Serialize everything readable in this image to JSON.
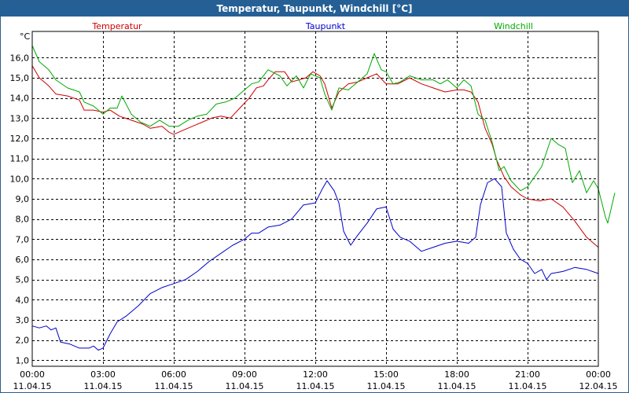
{
  "window": {
    "title": "Temperatur, Taupunkt, Windchill [°C]"
  },
  "colors": {
    "temperatur": "#cc0000",
    "taupunkt": "#0000cc",
    "windchill": "#00aa00",
    "title_bg": "#246095"
  },
  "chart_data": {
    "type": "line",
    "title": "Temperatur, Taupunkt, Windchill [°C]",
    "ylabel": "°C",
    "xlabel": "",
    "ylim": [
      0.7,
      17.3
    ],
    "xlim": [
      0,
      24
    ],
    "grid": true,
    "legend_placement": "top",
    "yticks": [
      1.0,
      2.0,
      3.0,
      4.0,
      5.0,
      6.0,
      7.0,
      8.0,
      9.0,
      10.0,
      11.0,
      12.0,
      13.0,
      14.0,
      15.0,
      16.0
    ],
    "ytick_labels": [
      "1,0",
      "2,0",
      "3,0",
      "4,0",
      "5,0",
      "6,0",
      "7,0",
      "8,0",
      "9,0",
      "10,0",
      "11,0",
      "12,0",
      "13,0",
      "14,0",
      "15,0",
      "16,0"
    ],
    "xticks": [
      {
        "x": 0,
        "time": "00:00",
        "date": "11.04.15"
      },
      {
        "x": 3,
        "time": "03:00",
        "date": "11.04.15"
      },
      {
        "x": 6,
        "time": "06:00",
        "date": "11.04.15"
      },
      {
        "x": 9,
        "time": "09:00",
        "date": "11.04.15"
      },
      {
        "x": 12,
        "time": "12:00",
        "date": "11.04.15"
      },
      {
        "x": 15,
        "time": "15:00",
        "date": "11.04.15"
      },
      {
        "x": 18,
        "time": "18:00",
        "date": "11.04.15"
      },
      {
        "x": 21,
        "time": "21:00",
        "date": "11.04.15"
      },
      {
        "x": 24,
        "time": "00:00",
        "date": "12.04.15"
      }
    ],
    "series": [
      {
        "name": "Temperatur",
        "color": "#cc0000",
        "points": [
          [
            0,
            15.6
          ],
          [
            0.3,
            15.0
          ],
          [
            0.7,
            14.6
          ],
          [
            1.0,
            14.2
          ],
          [
            1.5,
            14.1
          ],
          [
            2.0,
            13.9
          ],
          [
            2.2,
            13.4
          ],
          [
            2.6,
            13.4
          ],
          [
            3.0,
            13.3
          ],
          [
            3.3,
            13.4
          ],
          [
            3.7,
            13.1
          ],
          [
            4.2,
            12.9
          ],
          [
            4.7,
            12.7
          ],
          [
            5.0,
            12.5
          ],
          [
            5.5,
            12.6
          ],
          [
            5.8,
            12.3
          ],
          [
            6.0,
            12.2
          ],
          [
            6.4,
            12.4
          ],
          [
            6.8,
            12.6
          ],
          [
            7.2,
            12.8
          ],
          [
            7.6,
            13.0
          ],
          [
            8.0,
            13.1
          ],
          [
            8.4,
            13.0
          ],
          [
            8.8,
            13.5
          ],
          [
            9.2,
            14.0
          ],
          [
            9.5,
            14.5
          ],
          [
            9.8,
            14.6
          ],
          [
            10.0,
            14.9
          ],
          [
            10.3,
            15.3
          ],
          [
            10.7,
            15.3
          ],
          [
            11.0,
            14.8
          ],
          [
            11.3,
            14.9
          ],
          [
            11.6,
            15.0
          ],
          [
            11.9,
            15.3
          ],
          [
            12.2,
            15.1
          ],
          [
            12.4,
            14.7
          ],
          [
            12.7,
            13.5
          ],
          [
            13.0,
            14.3
          ],
          [
            13.4,
            14.7
          ],
          [
            13.8,
            14.8
          ],
          [
            14.2,
            15.0
          ],
          [
            14.6,
            15.2
          ],
          [
            15.0,
            14.7
          ],
          [
            15.5,
            14.7
          ],
          [
            16.0,
            15.0
          ],
          [
            16.5,
            14.7
          ],
          [
            17.0,
            14.5
          ],
          [
            17.5,
            14.3
          ],
          [
            18.0,
            14.4
          ],
          [
            18.3,
            14.4
          ],
          [
            18.6,
            14.3
          ],
          [
            18.9,
            13.8
          ],
          [
            19.2,
            12.5
          ],
          [
            19.5,
            11.7
          ],
          [
            19.7,
            10.9
          ],
          [
            20.0,
            10.1
          ],
          [
            20.3,
            9.6
          ],
          [
            20.7,
            9.2
          ],
          [
            21.0,
            9.0
          ],
          [
            21.5,
            8.9
          ],
          [
            22.0,
            9.0
          ],
          [
            22.5,
            8.6
          ],
          [
            23.0,
            7.9
          ],
          [
            23.5,
            7.1
          ],
          [
            24.0,
            6.6
          ]
        ]
      },
      {
        "name": "Taupunkt",
        "color": "#0000cc",
        "points": [
          [
            0,
            2.7
          ],
          [
            0.3,
            2.6
          ],
          [
            0.6,
            2.7
          ],
          [
            0.8,
            2.5
          ],
          [
            1.0,
            2.6
          ],
          [
            1.2,
            1.9
          ],
          [
            1.6,
            1.8
          ],
          [
            2.0,
            1.6
          ],
          [
            2.4,
            1.6
          ],
          [
            2.6,
            1.7
          ],
          [
            2.8,
            1.5
          ],
          [
            3.0,
            1.6
          ],
          [
            3.3,
            2.3
          ],
          [
            3.6,
            2.9
          ],
          [
            4.0,
            3.2
          ],
          [
            4.5,
            3.7
          ],
          [
            5.0,
            4.3
          ],
          [
            5.5,
            4.6
          ],
          [
            6.0,
            4.8
          ],
          [
            6.5,
            5.0
          ],
          [
            7.0,
            5.4
          ],
          [
            7.5,
            5.9
          ],
          [
            8.0,
            6.3
          ],
          [
            8.5,
            6.7
          ],
          [
            9.0,
            7.0
          ],
          [
            9.3,
            7.3
          ],
          [
            9.6,
            7.3
          ],
          [
            10.0,
            7.6
          ],
          [
            10.5,
            7.7
          ],
          [
            11.0,
            8.0
          ],
          [
            11.5,
            8.7
          ],
          [
            12.0,
            8.8
          ],
          [
            12.3,
            9.5
          ],
          [
            12.5,
            9.9
          ],
          [
            12.8,
            9.4
          ],
          [
            13.0,
            8.8
          ],
          [
            13.2,
            7.4
          ],
          [
            13.5,
            6.7
          ],
          [
            13.8,
            7.2
          ],
          [
            14.2,
            7.8
          ],
          [
            14.6,
            8.5
          ],
          [
            15.0,
            8.6
          ],
          [
            15.3,
            7.5
          ],
          [
            15.6,
            7.1
          ],
          [
            16.0,
            6.9
          ],
          [
            16.5,
            6.4
          ],
          [
            17.0,
            6.6
          ],
          [
            17.5,
            6.8
          ],
          [
            18.0,
            6.9
          ],
          [
            18.5,
            6.8
          ],
          [
            18.8,
            7.1
          ],
          [
            19.0,
            8.7
          ],
          [
            19.3,
            9.8
          ],
          [
            19.6,
            10.0
          ],
          [
            19.9,
            9.6
          ],
          [
            20.1,
            7.3
          ],
          [
            20.4,
            6.5
          ],
          [
            20.7,
            6.0
          ],
          [
            21.0,
            5.8
          ],
          [
            21.3,
            5.3
          ],
          [
            21.6,
            5.5
          ],
          [
            21.8,
            5.0
          ],
          [
            22.0,
            5.3
          ],
          [
            22.5,
            5.4
          ],
          [
            23.0,
            5.6
          ],
          [
            23.5,
            5.5
          ],
          [
            24.0,
            5.3
          ]
        ]
      },
      {
        "name": "Windchill",
        "color": "#00aa00",
        "points": [
          [
            0,
            16.6
          ],
          [
            0.3,
            15.8
          ],
          [
            0.7,
            15.4
          ],
          [
            1.0,
            14.9
          ],
          [
            1.5,
            14.5
          ],
          [
            2.0,
            14.3
          ],
          [
            2.2,
            13.8
          ],
          [
            2.6,
            13.6
          ],
          [
            3.0,
            13.2
          ],
          [
            3.3,
            13.5
          ],
          [
            3.6,
            13.5
          ],
          [
            3.8,
            14.1
          ],
          [
            4.2,
            13.2
          ],
          [
            4.6,
            12.8
          ],
          [
            5.0,
            12.6
          ],
          [
            5.4,
            12.9
          ],
          [
            5.8,
            12.6
          ],
          [
            6.2,
            12.6
          ],
          [
            6.6,
            12.9
          ],
          [
            7.0,
            13.1
          ],
          [
            7.4,
            13.2
          ],
          [
            7.8,
            13.7
          ],
          [
            8.2,
            13.8
          ],
          [
            8.6,
            14.0
          ],
          [
            9.0,
            14.4
          ],
          [
            9.3,
            14.7
          ],
          [
            9.6,
            14.8
          ],
          [
            10.0,
            15.4
          ],
          [
            10.5,
            15.1
          ],
          [
            10.8,
            14.6
          ],
          [
            11.2,
            15.1
          ],
          [
            11.5,
            14.5
          ],
          [
            11.8,
            15.2
          ],
          [
            12.2,
            15.0
          ],
          [
            12.4,
            14.2
          ],
          [
            12.7,
            13.4
          ],
          [
            13.0,
            14.5
          ],
          [
            13.4,
            14.4
          ],
          [
            13.8,
            14.8
          ],
          [
            14.2,
            15.2
          ],
          [
            14.5,
            16.2
          ],
          [
            14.8,
            15.4
          ],
          [
            15.0,
            15.3
          ],
          [
            15.3,
            14.7
          ],
          [
            15.6,
            14.8
          ],
          [
            16.0,
            15.1
          ],
          [
            16.5,
            14.9
          ],
          [
            17.0,
            14.9
          ],
          [
            17.3,
            14.7
          ],
          [
            17.6,
            14.9
          ],
          [
            18.0,
            14.5
          ],
          [
            18.3,
            14.9
          ],
          [
            18.6,
            14.6
          ],
          [
            18.9,
            13.2
          ],
          [
            19.2,
            12.9
          ],
          [
            19.5,
            11.8
          ],
          [
            19.8,
            10.4
          ],
          [
            20.0,
            10.6
          ],
          [
            20.3,
            9.9
          ],
          [
            20.7,
            9.4
          ],
          [
            21.0,
            9.6
          ],
          [
            21.3,
            10.1
          ],
          [
            21.6,
            10.6
          ],
          [
            22.0,
            12.0
          ],
          [
            22.3,
            11.7
          ],
          [
            22.6,
            11.5
          ],
          [
            22.9,
            9.8
          ],
          [
            23.2,
            10.4
          ],
          [
            23.5,
            9.3
          ],
          [
            23.8,
            9.9
          ],
          [
            24.0,
            9.5
          ],
          [
            24.3,
            8.1
          ],
          [
            24.4,
            7.8
          ],
          [
            24.6,
            8.8
          ],
          [
            24.7,
            9.3
          ]
        ]
      }
    ]
  }
}
